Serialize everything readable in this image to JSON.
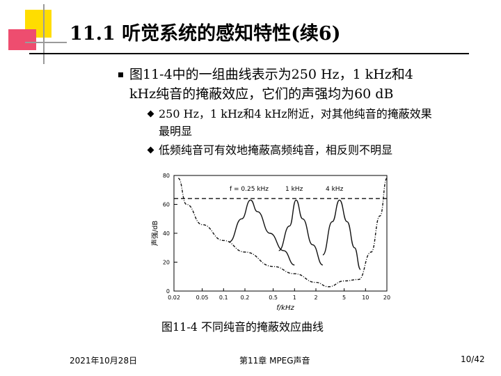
{
  "title": "11.1 听觉系统的感知特性(续6)",
  "bullet1": {
    "line1": "图11-4中的一组曲线表示为250 Hz，1 kHz和4",
    "line2": "kHz纯音的掩蔽效应，它们的声强均为60 dB"
  },
  "sub_bullets": [
    {
      "line1": "250 Hz，1 kHz和4 kHz附近，对其他纯音的掩蔽效果",
      "line2": "最明显"
    },
    {
      "line1": "低频纯音可有效地掩蔽高频纯音，相反则不明显",
      "line2": ""
    }
  ],
  "figure": {
    "y_axis_label": "声强/dB",
    "x_axis_label": "f/kHz",
    "y_ticks": [
      "80",
      "60",
      "40",
      "20",
      "0"
    ],
    "x_ticks": [
      "0.02",
      "0.05",
      "0.1",
      "0.2",
      "0.5",
      "1",
      "2",
      "5",
      "10",
      "20"
    ],
    "curve_labels": [
      "f = 0.25 kHz",
      "1 kHz",
      "4 kHz"
    ]
  },
  "caption": "图11-4  不同纯音的掩蔽效应曲线",
  "footer": {
    "date": "2021年10月28日",
    "chapter": "第11章 MPEG声音",
    "page": "10/42"
  },
  "colors": {
    "accent_yellow": "#ffdd00",
    "accent_pink": "#ee4d6f",
    "deco_gray": "#9a9a9a",
    "rule": "#000000"
  },
  "chart_data": {
    "type": "line",
    "title": "",
    "xlabel": "f/kHz",
    "ylabel": "声强/dB",
    "x_scale": "log",
    "xlim": [
      0.02,
      20
    ],
    "ylim": [
      0,
      80
    ],
    "categories": [
      "0.02",
      "0.05",
      "0.1",
      "0.2",
      "0.5",
      "1",
      "2",
      "5",
      "10",
      "20"
    ],
    "series": [
      {
        "name": "",
        "style": "dashed",
        "points": [
          [
            0.02,
            64
          ],
          [
            0.04,
            64
          ],
          [
            8,
            64
          ],
          [
            20,
            64
          ]
        ]
      },
      {
        "name": "",
        "style": "threshold",
        "points": [
          [
            0.023,
            78
          ],
          [
            0.03,
            60
          ],
          [
            0.05,
            46
          ],
          [
            0.1,
            35
          ],
          [
            0.2,
            27
          ],
          [
            0.5,
            17
          ],
          [
            1,
            12
          ],
          [
            2,
            6
          ],
          [
            3,
            3
          ],
          [
            5,
            7
          ],
          [
            8,
            8
          ],
          [
            12,
            27
          ],
          [
            16,
            52
          ],
          [
            20,
            78
          ]
        ]
      },
      {
        "name": "f = 0.25 kHz",
        "points": [
          [
            0.12,
            34
          ],
          [
            0.18,
            50
          ],
          [
            0.24,
            63
          ],
          [
            0.3,
            55
          ],
          [
            0.45,
            40
          ],
          [
            0.7,
            28
          ],
          [
            1,
            18
          ]
        ]
      },
      {
        "name": "1 kHz",
        "points": [
          [
            0.6,
            28
          ],
          [
            0.85,
            45
          ],
          [
            1.05,
            63
          ],
          [
            1.3,
            50
          ],
          [
            1.8,
            32
          ],
          [
            2.5,
            18
          ]
        ]
      },
      {
        "name": "4 kHz",
        "points": [
          [
            2.5,
            25
          ],
          [
            3.4,
            48
          ],
          [
            4.3,
            63
          ],
          [
            5.5,
            48
          ],
          [
            7,
            30
          ],
          [
            8.5,
            15
          ]
        ]
      }
    ]
  }
}
